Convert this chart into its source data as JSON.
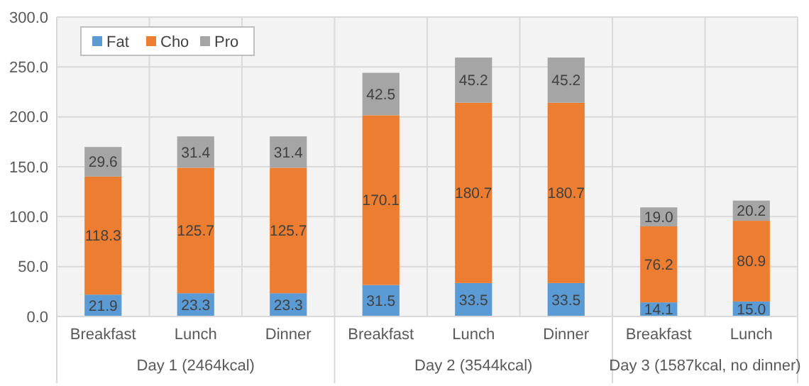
{
  "chart_data": {
    "type": "bar",
    "stacked": true,
    "categories": [
      "Breakfast",
      "Lunch",
      "Dinner",
      "Breakfast",
      "Lunch",
      "Dinner",
      "Breakfast",
      "Lunch"
    ],
    "series": [
      {
        "name": "Fat",
        "color": "#5b9bd5",
        "values": [
          21.9,
          23.3,
          23.3,
          31.5,
          33.5,
          33.5,
          14.1,
          15.0
        ],
        "value_labels": [
          "21.9",
          "23.3",
          "23.3",
          "31.5",
          "33.5",
          "33.5",
          "14.1",
          "15.0"
        ]
      },
      {
        "name": "Cho",
        "color": "#ed7d31",
        "values": [
          118.3,
          125.7,
          125.7,
          170.1,
          180.7,
          180.7,
          76.2,
          80.9
        ],
        "value_labels": [
          "118.3",
          "125.7",
          "125.7",
          "170.1",
          "180.7",
          "180.7",
          "76.2",
          "80.9"
        ]
      },
      {
        "name": "Pro",
        "color": "#a5a5a5",
        "values": [
          29.6,
          31.4,
          31.4,
          42.5,
          45.2,
          45.2,
          19.0,
          20.2
        ],
        "value_labels": [
          "29.6",
          "31.4",
          "31.4",
          "42.5",
          "45.2",
          "45.2",
          "19.0",
          "20.2"
        ]
      }
    ],
    "ylim": [
      0,
      300
    ],
    "yticks": [
      {
        "value": 0,
        "label": "0.0"
      },
      {
        "value": 50,
        "label": "50.0"
      },
      {
        "value": 100,
        "label": "100.0"
      },
      {
        "value": 150,
        "label": "150.0"
      },
      {
        "value": 200,
        "label": "200.0"
      },
      {
        "value": 250,
        "label": "250.0"
      },
      {
        "value": 300,
        "label": "300.0"
      }
    ],
    "grid": true,
    "legend": "top left",
    "annotations": [
      "Day 1 (2464kcal)",
      "Day 2 (3544kcal)",
      "Day 3 (1587kcal, no dinner)"
    ]
  }
}
